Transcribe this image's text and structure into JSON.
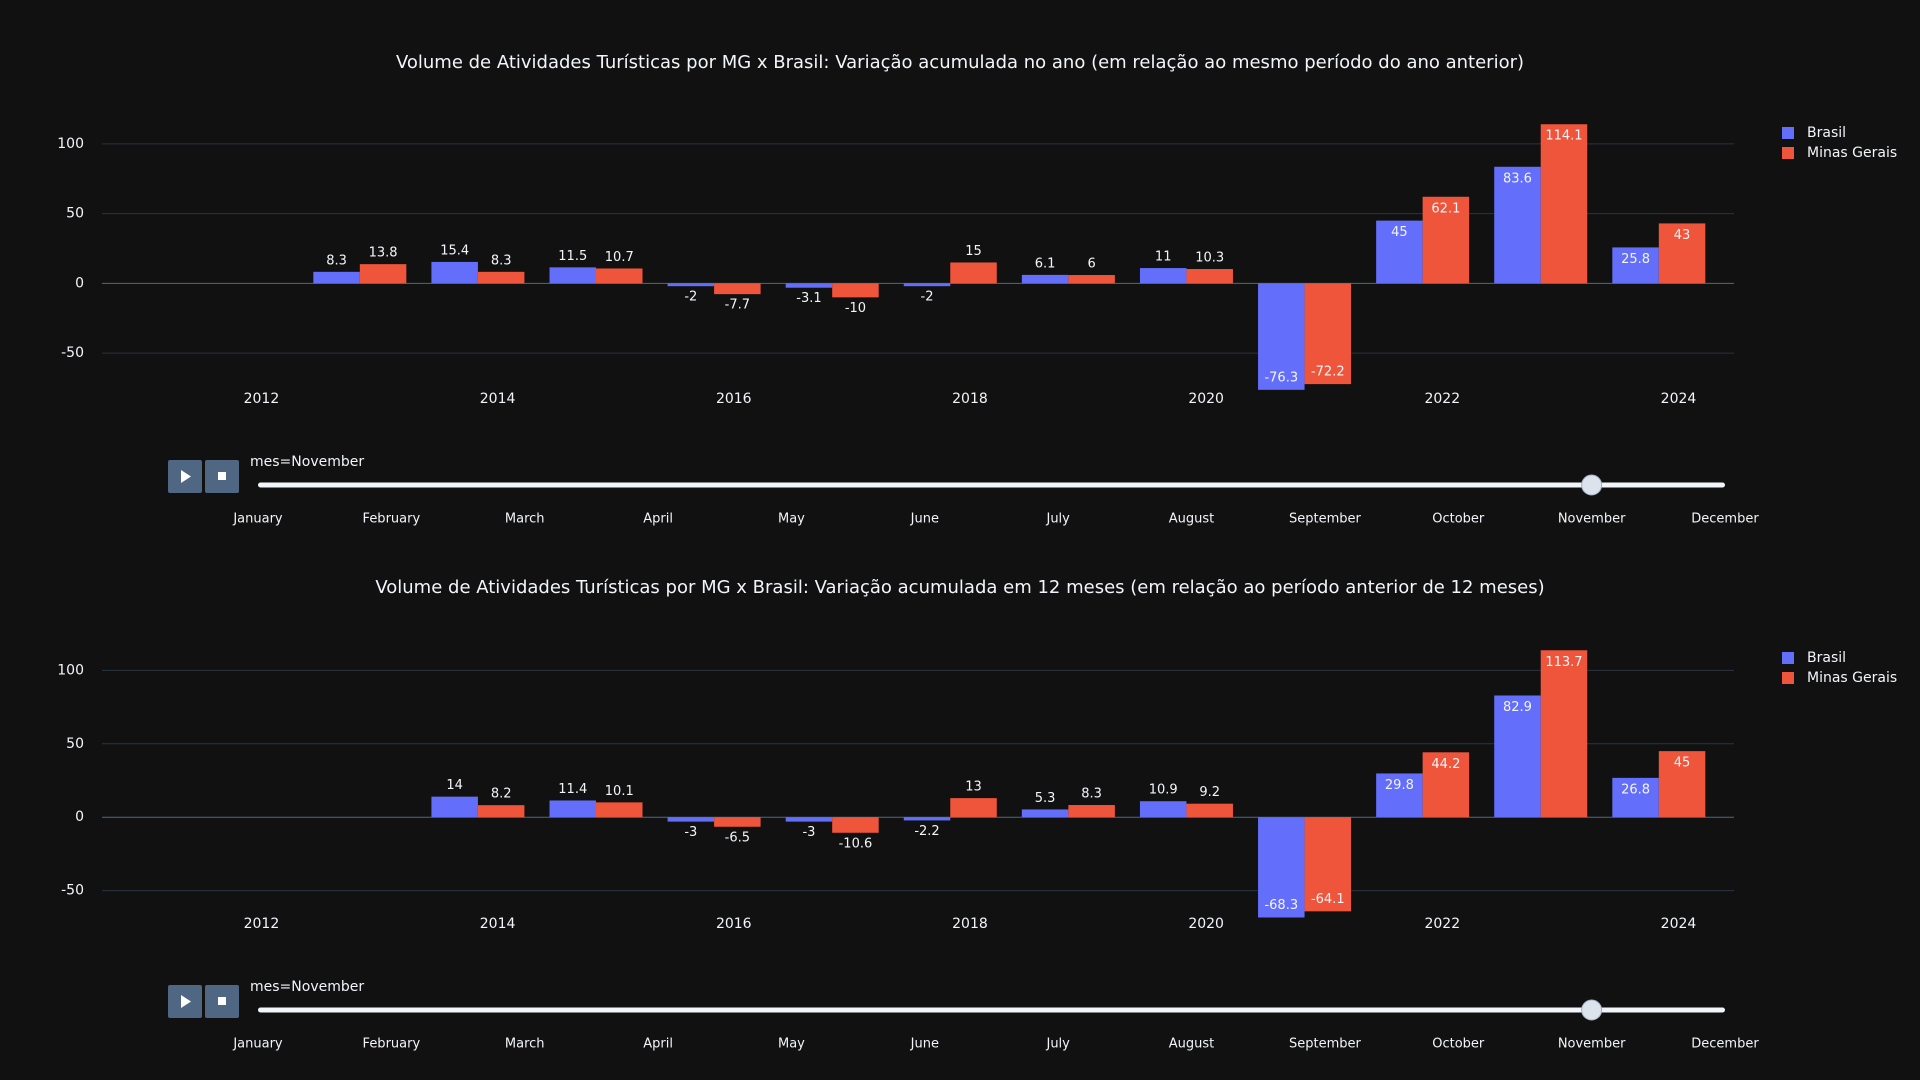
{
  "charts": [
    {
      "chart_data": {
        "type": "bar",
        "title": "Volume de Atividades Turísticas por MG x Brasil: Variação acumulada no ano (em relação ao mesmo período do ano anterior)",
        "x": [
          "2012-11",
          "2013-11",
          "2014-11",
          "2015-11",
          "2016-11",
          "2017-11",
          "2018-11",
          "2019-11",
          "2020-11",
          "2021-11",
          "2022-11",
          "2023-11"
        ],
        "series": [
          {
            "name": "Brasil",
            "color": "#636efa",
            "values": [
              8.3,
              15.4,
              11.5,
              -2,
              -3.1,
              -2,
              6.1,
              11,
              -76.3,
              45,
              83.6,
              25.8
            ]
          },
          {
            "name": "Minas Gerais",
            "color": "#ef553b",
            "values": [
              13.8,
              8.3,
              10.7,
              -7.7,
              -10,
              15,
              6,
              10.3,
              -72.2,
              62.1,
              114.1,
              43
            ]
          }
        ],
        "xlim": [
          2010.65,
          2024.47
        ],
        "xticks": [
          2012,
          2014,
          2016,
          2018,
          2020,
          2022,
          2024
        ],
        "ylim": [
          -80,
          120
        ],
        "yticks": [
          -50,
          0,
          50,
          100
        ],
        "grid": true,
        "legend": "top-right",
        "slider": {
          "label": "mes=November",
          "steps": [
            "January",
            "February",
            "March",
            "April",
            "May",
            "June",
            "July",
            "August",
            "September",
            "October",
            "November",
            "December"
          ],
          "active": 10
        }
      }
    },
    {
      "chart_data": {
        "type": "bar",
        "title": "Volume de Atividades Turísticas por MG x Brasil: Variação acumulada em 12 meses (em relação ao período anterior de 12 meses)",
        "x": [
          "2013-11",
          "2014-11",
          "2015-11",
          "2016-11",
          "2017-11",
          "2018-11",
          "2019-11",
          "2020-11",
          "2021-11",
          "2022-11",
          "2023-11"
        ],
        "series": [
          {
            "name": "Brasil",
            "color": "#636efa",
            "values": [
              14,
              11.4,
              -3,
              -3,
              -2.2,
              5.3,
              10.9,
              -68.3,
              29.8,
              82.9,
              26.8
            ]
          },
          {
            "name": "Minas Gerais",
            "color": "#ef553b",
            "values": [
              8.2,
              10.1,
              -6.5,
              -10.6,
              13,
              8.3,
              9.2,
              -64.1,
              44.2,
              113.7,
              45
            ]
          }
        ],
        "xlim": [
          2010.65,
          2024.47
        ],
        "xticks": [
          2012,
          2014,
          2016,
          2018,
          2020,
          2022,
          2024
        ],
        "ylim": [
          -70,
          120
        ],
        "yticks": [
          -50,
          0,
          50,
          100
        ],
        "grid": true,
        "legend": "top-right",
        "slider": {
          "label": "mes=November",
          "steps": [
            "January",
            "February",
            "March",
            "April",
            "May",
            "June",
            "July",
            "August",
            "September",
            "October",
            "November",
            "December"
          ],
          "active": 10
        }
      }
    }
  ]
}
